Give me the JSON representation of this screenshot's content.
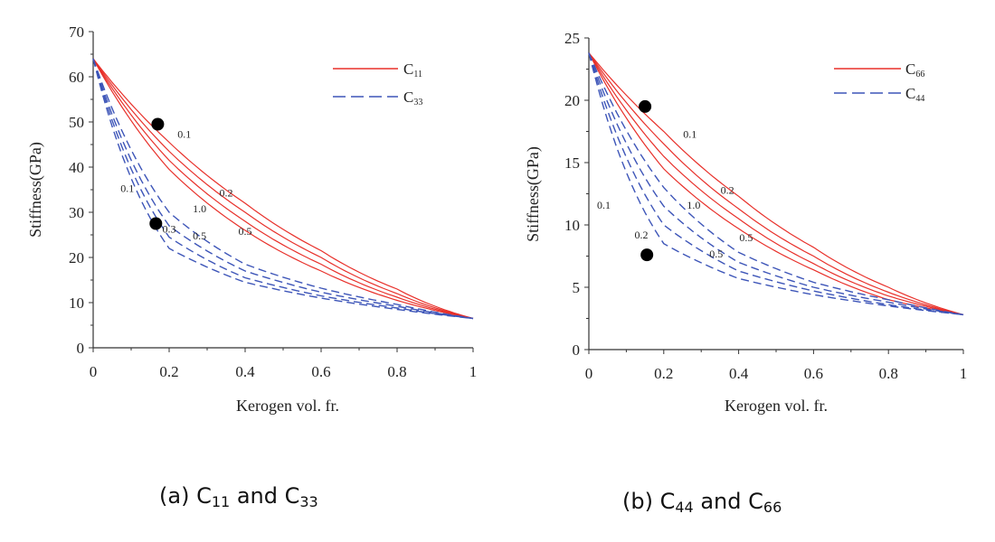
{
  "chart_data": [
    {
      "type": "line",
      "panel": "a",
      "xlabel": "Kerogen vol. fr.",
      "ylabel": "Stiffness(GPa)",
      "xlim": [
        0,
        1
      ],
      "ylim": [
        0,
        70
      ],
      "xticks": [
        "0",
        "0.2",
        "0.4",
        "0.6",
        "0.8",
        "1"
      ],
      "yticks": [
        "0",
        "10",
        "20",
        "30",
        "40",
        "50",
        "60",
        "70"
      ],
      "start_value": 64,
      "end_value": 6.5,
      "legend": [
        {
          "base": "C",
          "sub": "11",
          "style": "solid",
          "color": "#e8302a"
        },
        {
          "base": "C",
          "sub": "33",
          "style": "dashed",
          "color": "#3d55b8"
        }
      ],
      "series": [
        {
          "name": "C11 aspect 0.1",
          "style": "solid",
          "color": "#e8302a",
          "values_at": {
            "x": [
              0,
              0.2,
              0.4,
              0.6,
              0.8,
              1.0
            ],
            "y": [
              64,
              45.5,
              32,
              21.5,
              13,
              6.5
            ]
          }
        },
        {
          "name": "C11 aspect 0.2",
          "style": "solid",
          "color": "#e8302a",
          "values_at": {
            "x": [
              0,
              0.2,
              0.4,
              0.6,
              0.8,
              1.0
            ],
            "y": [
              64,
              43.5,
              30,
              20,
              12,
              6.5
            ]
          }
        },
        {
          "name": "C11 aspect 1.0",
          "style": "solid",
          "color": "#e8302a",
          "values_at": {
            "x": [
              0,
              0.2,
              0.4,
              0.6,
              0.8,
              1.0
            ],
            "y": [
              64,
              41.5,
              28,
              18.5,
              11.2,
              6.5
            ]
          }
        },
        {
          "name": "C11 aspect 0.5",
          "style": "solid",
          "color": "#e8302a",
          "values_at": {
            "x": [
              0,
              0.2,
              0.4,
              0.6,
              0.8,
              1.0
            ],
            "y": [
              64,
              39.5,
              26,
              17,
              10.5,
              6.5
            ]
          }
        },
        {
          "name": "C33 aspect 0.1",
          "style": "dashed",
          "color": "#3d55b8",
          "values_at": {
            "x": [
              0,
              0.2,
              0.4,
              0.6,
              0.8,
              1.0
            ],
            "y": [
              64,
              22,
              14.5,
              11,
              8.5,
              6.5
            ]
          }
        },
        {
          "name": "C33 aspect 0.2",
          "style": "dashed",
          "color": "#3d55b8",
          "values_at": {
            "x": [
              0,
              0.2,
              0.4,
              0.6,
              0.8,
              1.0
            ],
            "y": [
              64,
              24.5,
              15.5,
              11.5,
              8.8,
              6.5
            ]
          }
        },
        {
          "name": "C33 aspect 0.3",
          "style": "dashed",
          "color": "#3d55b8",
          "values_at": {
            "x": [
              0,
              0.2,
              0.4,
              0.6,
              0.8,
              1.0
            ],
            "y": [
              64,
              27,
              17,
              12.3,
              9.2,
              6.5
            ]
          }
        },
        {
          "name": "C33 aspect 0.5",
          "style": "dashed",
          "color": "#3d55b8",
          "values_at": {
            "x": [
              0,
              0.2,
              0.4,
              0.6,
              0.8,
              1.0
            ],
            "y": [
              64,
              30,
              18.5,
              13.2,
              9.6,
              6.5
            ]
          }
        }
      ],
      "curve_labels": [
        {
          "text": "0.1",
          "x": 0.24,
          "y": 46.5
        },
        {
          "text": "0.2",
          "x": 0.35,
          "y": 33.5
        },
        {
          "text": "1.0",
          "x": 0.28,
          "y": 30
        },
        {
          "text": "0.5",
          "x": 0.4,
          "y": 25
        },
        {
          "text": "0.1",
          "x": 0.09,
          "y": 34.5
        },
        {
          "text": "0.3",
          "x": 0.2,
          "y": 25.5
        },
        {
          "text": "0.5",
          "x": 0.28,
          "y": 24
        }
      ],
      "markers": [
        {
          "x": 0.17,
          "y": 49.5
        },
        {
          "x": 0.165,
          "y": 27.5
        }
      ]
    },
    {
      "type": "line",
      "panel": "b",
      "xlabel": "Kerogen vol. fr.",
      "ylabel": "Stiffness(GPa)",
      "xlim": [
        0,
        1
      ],
      "ylim": [
        0,
        25
      ],
      "xticks": [
        "0",
        "0.2",
        "0.4",
        "0.6",
        "0.8",
        "1"
      ],
      "yticks": [
        "0",
        "5",
        "10",
        "15",
        "20",
        "25"
      ],
      "start_value": 23.8,
      "end_value": 2.8,
      "legend": [
        {
          "base": "C",
          "sub": "66",
          "style": "solid",
          "color": "#e8302a"
        },
        {
          "base": "C",
          "sub": "44",
          "style": "dashed",
          "color": "#3d55b8"
        }
      ],
      "series": [
        {
          "name": "C66 aspect 0.1",
          "style": "solid",
          "color": "#e8302a",
          "values_at": {
            "x": [
              0,
              0.2,
              0.4,
              0.6,
              0.8,
              1.0
            ],
            "y": [
              23.8,
              17.5,
              12.3,
              8.2,
              5,
              2.8
            ]
          }
        },
        {
          "name": "C66 aspect 0.2",
          "style": "solid",
          "color": "#e8302a",
          "values_at": {
            "x": [
              0,
              0.2,
              0.4,
              0.6,
              0.8,
              1.0
            ],
            "y": [
              23.8,
              16.5,
              11.3,
              7.5,
              4.6,
              2.8
            ]
          }
        },
        {
          "name": "C66 aspect 1.0",
          "style": "solid",
          "color": "#e8302a",
          "values_at": {
            "x": [
              0,
              0.2,
              0.4,
              0.6,
              0.8,
              1.0
            ],
            "y": [
              23.8,
              15.5,
              10.5,
              6.9,
              4.3,
              2.8
            ]
          }
        },
        {
          "name": "C66 aspect 0.5",
          "style": "solid",
          "color": "#e8302a",
          "values_at": {
            "x": [
              0,
              0.2,
              0.4,
              0.6,
              0.8,
              1.0
            ],
            "y": [
              23.8,
              14.5,
              9.7,
              6.4,
              4,
              2.8
            ]
          }
        },
        {
          "name": "C44 aspect 0.1",
          "style": "dashed",
          "color": "#3d55b8",
          "values_at": {
            "x": [
              0,
              0.2,
              0.4,
              0.6,
              0.8,
              1.0
            ],
            "y": [
              23.8,
              8.5,
              5.7,
              4.4,
              3.5,
              2.8
            ]
          }
        },
        {
          "name": "C44 aspect 0.2",
          "style": "dashed",
          "color": "#3d55b8",
          "values_at": {
            "x": [
              0,
              0.2,
              0.4,
              0.6,
              0.8,
              1.0
            ],
            "y": [
              23.8,
              10,
              6.3,
              4.7,
              3.6,
              2.8
            ]
          }
        },
        {
          "name": "C44 aspect 0.3",
          "style": "dashed",
          "color": "#3d55b8",
          "values_at": {
            "x": [
              0,
              0.2,
              0.4,
              0.6,
              0.8,
              1.0
            ],
            "y": [
              23.8,
              11.5,
              7,
              5,
              3.8,
              2.8
            ]
          }
        },
        {
          "name": "C44 aspect 0.5",
          "style": "dashed",
          "color": "#3d55b8",
          "values_at": {
            "x": [
              0,
              0.2,
              0.4,
              0.6,
              0.8,
              1.0
            ],
            "y": [
              23.8,
              13,
              7.8,
              5.4,
              4,
              2.8
            ]
          }
        }
      ],
      "curve_labels": [
        {
          "text": "0.1",
          "x": 0.27,
          "y": 17
        },
        {
          "text": "0.2",
          "x": 0.37,
          "y": 12.5
        },
        {
          "text": "1.0",
          "x": 0.28,
          "y": 11.3
        },
        {
          "text": "0.5",
          "x": 0.42,
          "y": 8.7
        },
        {
          "text": "0.1",
          "x": 0.04,
          "y": 11.3
        },
        {
          "text": "0.2",
          "x": 0.14,
          "y": 8.9
        },
        {
          "text": "0.5",
          "x": 0.34,
          "y": 7.4
        }
      ],
      "markers": [
        {
          "x": 0.15,
          "y": 19.5
        },
        {
          "x": 0.155,
          "y": 7.6
        }
      ]
    }
  ],
  "captions": {
    "a": {
      "prefix": "(a) C",
      "sub1": "11",
      "mid": " and C",
      "sub2": "33"
    },
    "b": {
      "prefix": "(b) C",
      "sub1": "44",
      "mid": " and C",
      "sub2": "66"
    }
  },
  "colors": {
    "solid": "#e8302a",
    "dashed": "#3d55b8",
    "marker": "#000000"
  }
}
